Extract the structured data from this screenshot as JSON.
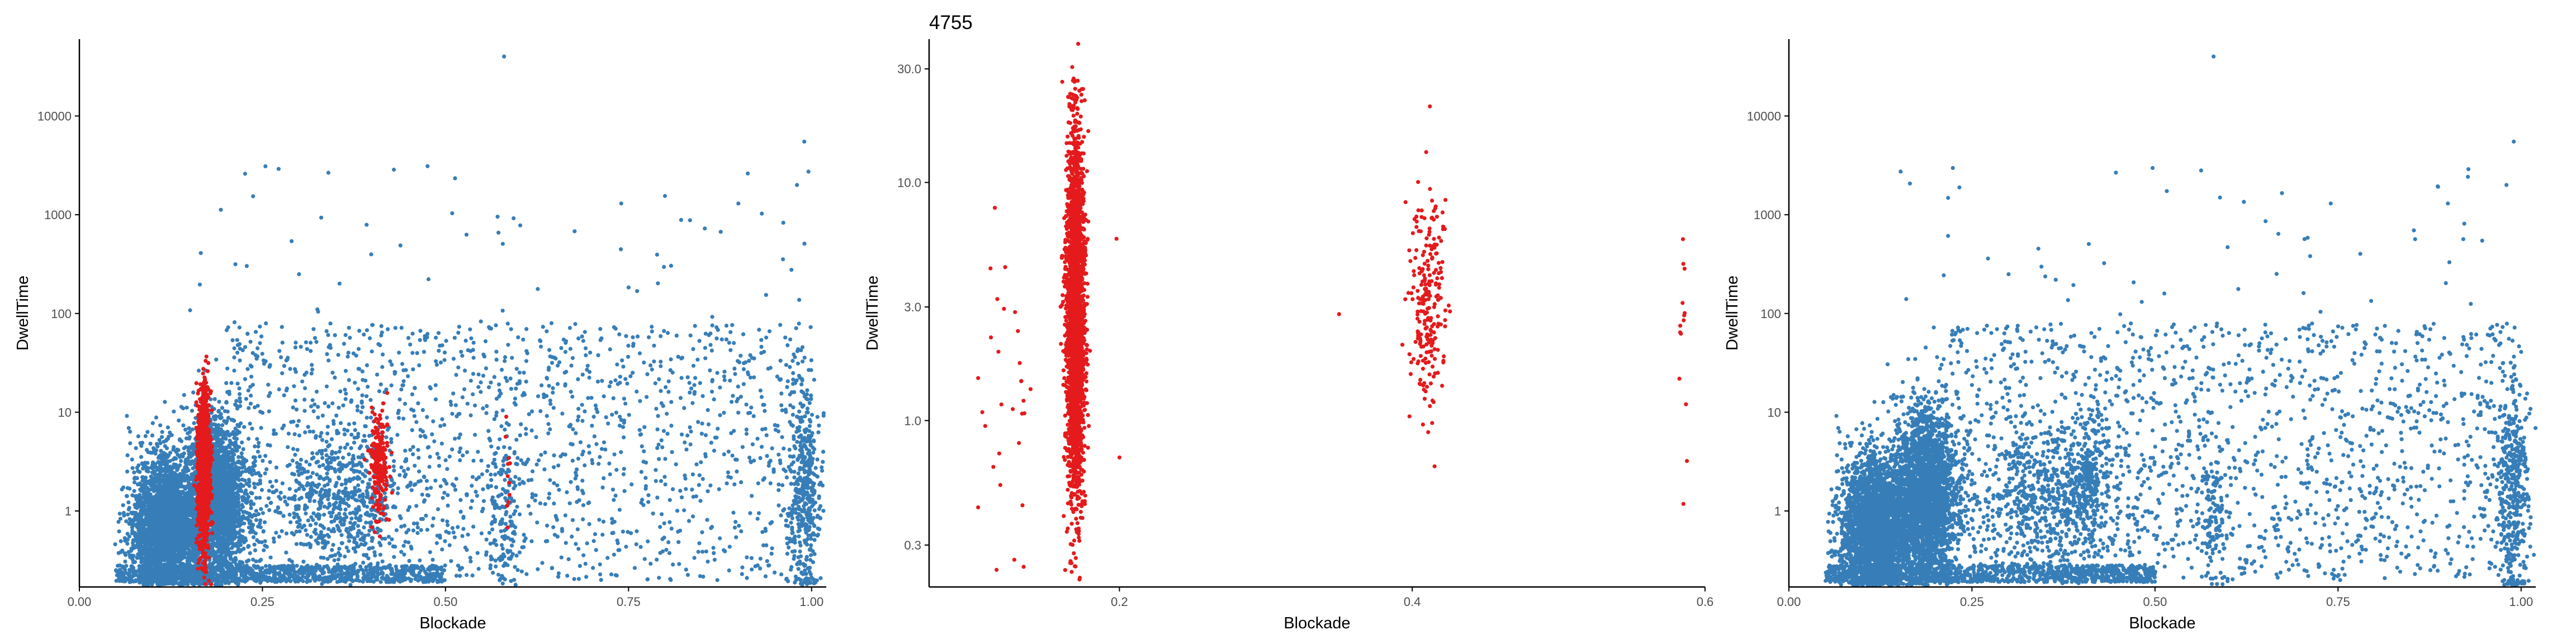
{
  "colors": {
    "blue": "#377EB8",
    "red": "#E41A1C",
    "axis": "#000000",
    "tick_text": "#4D4D4D"
  },
  "chart_data": [
    {
      "type": "scatter",
      "title": "",
      "xlabel": "Blockade",
      "ylabel": "DwellTime",
      "y_scale": "log10",
      "xlim": [
        0.0,
        1.02
      ],
      "ylim": [
        0.17,
        60000
      ],
      "x_ticks": [
        0.0,
        0.25,
        0.5,
        0.75,
        1.0
      ],
      "x_tick_labels": [
        "0.00",
        "0.25",
        "0.50",
        "0.75",
        "1.00"
      ],
      "y_ticks": [
        1,
        10,
        100,
        1000,
        10000
      ],
      "y_tick_labels": [
        "1",
        "10",
        "100",
        "1000",
        "10000"
      ],
      "grid": false,
      "legend": "none",
      "series": [
        {
          "color": "blue",
          "clusters": [
            {
              "x_mean": 0.115,
              "x_sd": 0.022,
              "log10y_mean": -0.15,
              "log10y_sd": 0.35,
              "n": 2600
            },
            {
              "x_mean": 0.185,
              "x_sd": 0.022,
              "log10y_mean": 0.1,
              "log10y_sd": 0.4,
              "n": 2400
            },
            {
              "x_mean": 0.36,
              "x_sd": 0.05,
              "log10y_mean": 0.1,
              "log10y_sd": 0.35,
              "n": 600
            },
            {
              "x_mean": 0.58,
              "x_sd": 0.01,
              "log10y_mean": -0.1,
              "log10y_sd": 0.35,
              "n": 120
            },
            {
              "x_mean": 0.99,
              "x_sd": 0.012,
              "log10y_mean": 0.2,
              "log10y_sd": 0.55,
              "n": 400
            }
          ],
          "uniform_background": {
            "x_range": [
              0.2,
              1.0
            ],
            "log10y_range": [
              -0.7,
              1.9
            ],
            "n": 1600
          },
          "baseline_band": {
            "x_range": [
              0.05,
              0.5
            ],
            "log10y_range": [
              -0.72,
              -0.55
            ],
            "n": 900
          },
          "sparse_high": {
            "x_range": [
              0.15,
              1.0
            ],
            "log10y_range": [
              1.8,
              3.5
            ],
            "n": 60
          },
          "outliers": [
            [
              0.58,
              40000
            ],
            [
              0.99,
              5500
            ],
            [
              0.74,
              1300
            ],
            [
              0.9,
              1300
            ],
            [
              0.3,
              250
            ],
            [
              0.98,
              2000
            ]
          ]
        },
        {
          "color": "red",
          "clusters": [
            {
              "x_mean": 0.17,
              "x_sd": 0.004,
              "log10y_mean": 0.4,
              "log10y_sd": 0.42,
              "n": 1200
            },
            {
              "x_mean": 0.41,
              "x_sd": 0.006,
              "log10y_mean": 0.5,
              "log10y_sd": 0.28,
              "n": 220
            },
            {
              "x_mean": 0.585,
              "x_sd": 0.002,
              "log10y_mean": 0.3,
              "log10y_sd": 0.3,
              "n": 12
            }
          ]
        }
      ]
    },
    {
      "type": "scatter",
      "title": "4755",
      "xlabel": "Blockade",
      "ylabel": "DwellTime",
      "y_scale": "log10",
      "xlim": [
        0.07,
        0.6
      ],
      "ylim": [
        0.2,
        40
      ],
      "x_ticks": [
        0.2,
        0.4,
        0.6
      ],
      "x_tick_labels": [
        "0.2",
        "0.4",
        "0.6"
      ],
      "y_ticks": [
        0.3,
        1.0,
        3.0,
        10.0,
        30.0
      ],
      "y_tick_labels": [
        "0.3",
        "1.0",
        "3.0",
        "10.0",
        "30.0"
      ],
      "grid": false,
      "legend": "none",
      "series": [
        {
          "color": "red",
          "clusters": [
            {
              "x_mean": 0.17,
              "x_sd": 0.003,
              "log10y_mean": 0.45,
              "log10y_sd": 0.38,
              "n": 2600
            },
            {
              "x_mean": 0.41,
              "x_sd": 0.006,
              "log10y_mean": 0.5,
              "log10y_sd": 0.23,
              "n": 230
            },
            {
              "x_mean": 0.12,
              "x_sd": 0.012,
              "log10y_mean": 0.05,
              "log10y_sd": 0.3,
              "n": 30
            },
            {
              "x_mean": 0.585,
              "x_sd": 0.002,
              "log10y_mean": 0.35,
              "log10y_sd": 0.35,
              "n": 14
            }
          ],
          "outliers": [
            [
              0.35,
              2.8
            ],
            [
              0.2,
              0.7
            ],
            [
              0.198,
              5.8
            ]
          ]
        }
      ]
    },
    {
      "type": "scatter",
      "title": "",
      "xlabel": "Blockade",
      "ylabel": "DwellTime",
      "y_scale": "log10",
      "xlim": [
        0.0,
        1.02
      ],
      "ylim": [
        0.17,
        60000
      ],
      "x_ticks": [
        0.0,
        0.25,
        0.5,
        0.75,
        1.0
      ],
      "x_tick_labels": [
        "0.00",
        "0.25",
        "0.50",
        "0.75",
        "1.00"
      ],
      "y_ticks": [
        1,
        10,
        100,
        1000,
        10000
      ],
      "y_tick_labels": [
        "1",
        "10",
        "100",
        "1000",
        "10000"
      ],
      "grid": false,
      "legend": "none",
      "series": [
        {
          "color": "blue",
          "clusters": [
            {
              "x_mean": 0.115,
              "x_sd": 0.022,
              "log10y_mean": -0.15,
              "log10y_sd": 0.35,
              "n": 2600
            },
            {
              "x_mean": 0.185,
              "x_sd": 0.022,
              "log10y_mean": 0.15,
              "log10y_sd": 0.42,
              "n": 2800
            },
            {
              "x_mean": 0.36,
              "x_sd": 0.05,
              "log10y_mean": 0.1,
              "log10y_sd": 0.35,
              "n": 600
            },
            {
              "x_mean": 0.41,
              "x_sd": 0.01,
              "log10y_mean": 0.4,
              "log10y_sd": 0.3,
              "n": 200
            },
            {
              "x_mean": 0.58,
              "x_sd": 0.01,
              "log10y_mean": -0.1,
              "log10y_sd": 0.35,
              "n": 120
            },
            {
              "x_mean": 0.99,
              "x_sd": 0.012,
              "log10y_mean": 0.2,
              "log10y_sd": 0.55,
              "n": 400
            }
          ],
          "uniform_background": {
            "x_range": [
              0.2,
              1.0
            ],
            "log10y_range": [
              -0.7,
              1.9
            ],
            "n": 1600
          },
          "baseline_band": {
            "x_range": [
              0.05,
              0.5
            ],
            "log10y_range": [
              -0.72,
              -0.55
            ],
            "n": 900
          },
          "sparse_high": {
            "x_range": [
              0.15,
              1.0
            ],
            "log10y_range": [
              1.8,
              3.5
            ],
            "n": 60
          },
          "outliers": [
            [
              0.58,
              40000
            ],
            [
              0.99,
              5500
            ],
            [
              0.74,
              1300
            ],
            [
              0.9,
              1300
            ],
            [
              0.3,
              250
            ],
            [
              0.98,
              2000
            ]
          ]
        }
      ]
    }
  ]
}
